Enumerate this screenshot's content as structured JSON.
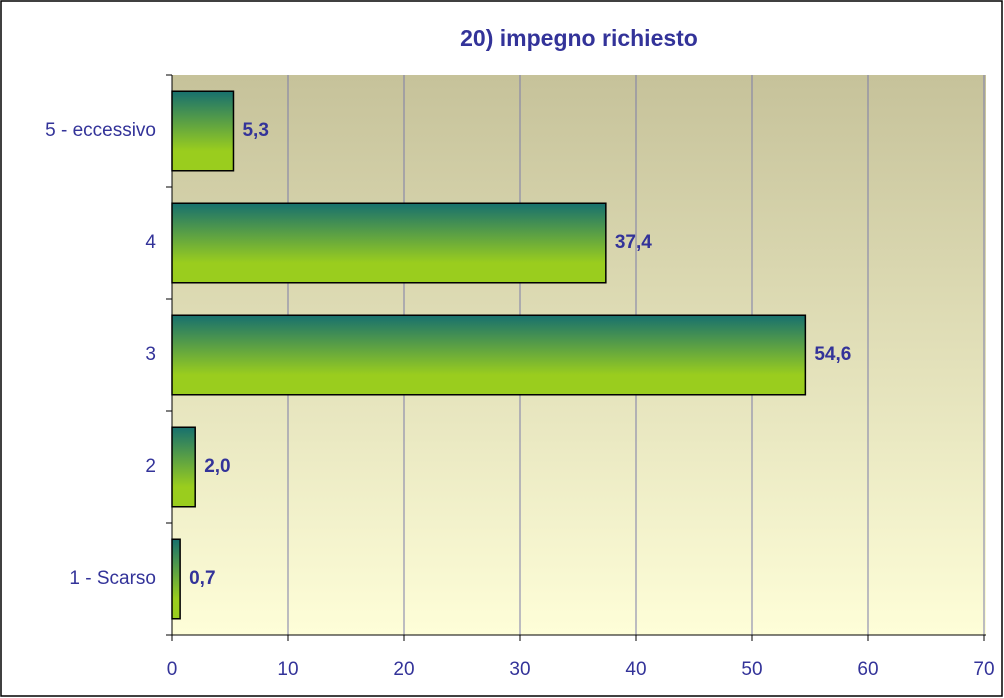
{
  "chart_data": {
    "type": "barh",
    "title": "20) impegno richiesto",
    "categories": [
      "1 - Scarso",
      "2",
      "3",
      "4",
      "5 - eccessivo"
    ],
    "values": [
      0.7,
      2.0,
      54.6,
      37.4,
      5.3
    ],
    "value_labels": [
      "0,7",
      "2,0",
      "54,6",
      "37,4",
      "5,3"
    ],
    "colors": [
      "#17706e",
      "#9acd1e"
    ],
    "xlim": [
      0,
      70
    ],
    "xticks": [
      0,
      10,
      20,
      30,
      40,
      50,
      60,
      70
    ],
    "grid": true
  }
}
